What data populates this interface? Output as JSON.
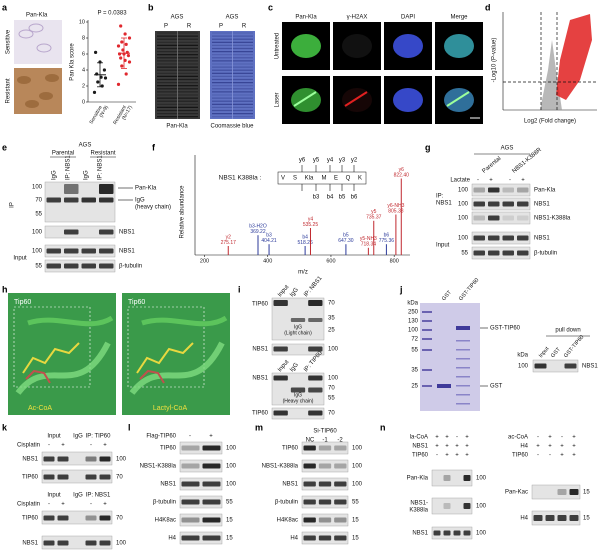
{
  "panel_labels": [
    "a",
    "b",
    "c",
    "d",
    "e",
    "f",
    "g",
    "h",
    "i",
    "j",
    "k",
    "l",
    "m",
    "n"
  ],
  "panels": {
    "a": {
      "texts": [
        "Pan-Kla",
        "Sensitive",
        "Resistant"
      ],
      "plot": {
        "pvalue": "P = 0.0383",
        "ylabel": "Pan Kla score",
        "ylim": [
          0,
          10
        ],
        "yticks": [
          0,
          2,
          4,
          6,
          8,
          10
        ],
        "groups": [
          {
            "name": "Sensitive",
            "n": "(N=9)",
            "color": "#1a1a1a",
            "values": [
              1.2,
              2.0,
              2.5,
              3.0,
              3.1,
              3.5,
              4.0,
              5.0,
              6.2
            ],
            "mean": 3.4,
            "sd": 1.5
          },
          {
            "name": "Resistant",
            "n": "(N=17)",
            "color": "#e0282e",
            "values": [
              2.2,
              3.5,
              4.5,
              5.0,
              5.2,
              5.5,
              5.8,
              6.0,
              6.0,
              6.2,
              6.5,
              7.0,
              7.2,
              7.5,
              8.0,
              8.5,
              9.5
            ],
            "mean": 6.1,
            "sd": 1.9
          }
        ]
      }
    },
    "b": {
      "texts": [
        "AGS",
        "P",
        "R",
        "AGS",
        "P",
        "R",
        "Pan-Kla",
        "Coomassie blue"
      ]
    },
    "c": {
      "texts": [
        "Pan-Kla",
        "γ-H2AX",
        "DAPI",
        "Merge",
        "Untreated",
        "Laser"
      ]
    },
    "d": {
      "texts": [
        "-Log10 (P-value)",
        "Log2 (Fold change)"
      ]
    },
    "e": {
      "texts": [
        "AGS",
        "Parental",
        "Resistant",
        "IgG",
        "IP: NBS1",
        "IgG",
        "IP: NBS1",
        "IP",
        "Input",
        "100",
        "70",
        "55",
        "100",
        "100",
        "55",
        "Pan-Kla",
        "IgG",
        "(heavy chain)",
        "NBS1",
        "NBS1",
        "β-tubulin"
      ]
    },
    "f": {
      "texts": [
        "NBS1 K388la :",
        "V",
        "S",
        "Kla",
        "M",
        "E",
        "Q",
        "K",
        "y6",
        "y5",
        "y4",
        "y3",
        "y2",
        "b3",
        "b4",
        "b5",
        "b6",
        "Relative abundance",
        "m/z"
      ],
      "spectrum": {
        "xlim": [
          170,
          850
        ],
        "xticks": [
          200,
          400,
          600,
          800
        ],
        "ylim": [
          0,
          100
        ],
        "peaks": [
          {
            "name": "y2",
            "mz": 275.17,
            "mz_label": "275.17",
            "intensity": 10,
            "color": "#c0282e"
          },
          {
            "name": "b3-H2O",
            "mz": 369.22,
            "mz_label": "369.22",
            "intensity": 22,
            "color": "#2b3a9a"
          },
          {
            "name": "b3",
            "mz": 404.21,
            "mz_label": "404.21",
            "intensity": 12,
            "color": "#2b3a9a"
          },
          {
            "name": "b4",
            "mz": 518.26,
            "mz_label": "518.26",
            "intensity": 10,
            "color": "#2b3a9a"
          },
          {
            "name": "y4",
            "mz": 535.25,
            "mz_label": "535.25",
            "intensity": 30,
            "color": "#c0282e"
          },
          {
            "name": "b5",
            "mz": 647.3,
            "mz_label": "647.30",
            "intensity": 12,
            "color": "#2b3a9a"
          },
          {
            "name": "y5-NH3",
            "mz": 718.34,
            "mz_label": "718.34",
            "intensity": 8,
            "color": "#c0282e"
          },
          {
            "name": "y5",
            "mz": 735.37,
            "mz_label": "735.37",
            "intensity": 38,
            "color": "#c0282e"
          },
          {
            "name": "b6",
            "mz": 775.36,
            "mz_label": "775.36",
            "intensity": 12,
            "color": "#2b3a9a"
          },
          {
            "name": "y6-NH3",
            "mz": 805.38,
            "mz_label": "805.38",
            "intensity": 45,
            "color": "#c0282e"
          },
          {
            "name": "y6",
            "mz": 822.4,
            "mz_label": "822.40",
            "intensity": 85,
            "color": "#c0282e"
          }
        ]
      }
    },
    "g": {
      "texts": [
        "AGS",
        "Parental",
        "NBS1-K388R",
        "Lactate",
        "-",
        "+",
        "-",
        "+",
        "IP:",
        "NBS1",
        "Input",
        "100",
        "100",
        "100",
        "100",
        "55",
        "Pan-Kla",
        "NBS1",
        "NBS1-K388la",
        "NBS1",
        "β-tubulin"
      ]
    },
    "h": {
      "texts": [
        "Tip60",
        "Tip60",
        "Ac-CoA",
        "Lactyl-CoA"
      ]
    },
    "i": {
      "texts": [
        "Input",
        "IgG",
        "IP: NBS1",
        "TIP60",
        "IgG",
        "(Light chain)",
        "NBS1",
        "70",
        "35",
        "25",
        "100",
        "Input",
        "IgG",
        "IP: TIP60",
        "NBS1",
        "IgG",
        "(Heavy chain)",
        "TIP60",
        "100",
        "70",
        "55",
        "70"
      ]
    },
    "j": {
      "texts": [
        "kDa",
        "250",
        "130",
        "100",
        "72",
        "55",
        "35",
        "25",
        "GST",
        "GST-TIP60",
        "GST-TIP60",
        "GST",
        "pull down",
        "Input",
        "GST",
        "GST-TIP60",
        "kDa",
        "100",
        "NBS1"
      ]
    },
    "k": {
      "texts": [
        "Input",
        "IgG",
        "IP: TIP60",
        "Cisplatin",
        "-",
        "+",
        "-",
        "+",
        "NBS1",
        "TIP60",
        "100",
        "70",
        "Input",
        "IgG",
        "IP: NBS1",
        "Cisplatin",
        "-",
        "+",
        "-",
        "+",
        "TIP60",
        "NBS1",
        "70",
        "100"
      ]
    },
    "l": {
      "texts": [
        "Flag-TIP60",
        "-",
        "+",
        "TIP60",
        "NBS1-K388la",
        "NBS1",
        "β-tubulin",
        "H4K8ac",
        "H4",
        "100",
        "100",
        "100",
        "55",
        "15",
        "15"
      ]
    },
    "m": {
      "texts": [
        "Si-TIP60",
        "NC",
        "-1",
        "-2",
        "TIP60",
        "NBS1-K388la",
        "NBS1",
        "β-tubulin",
        "H4K8ac",
        "H4",
        "100",
        "100",
        "100",
        "55",
        "15",
        "15"
      ]
    },
    "n": {
      "texts": [
        "la-CoA",
        "+",
        "+",
        "-",
        "+",
        "NBS1",
        "+",
        "+",
        "+",
        "+",
        "TIP60",
        "-",
        "+",
        "+",
        "+",
        "Pan-Kla",
        "NBS1-",
        "K388la",
        "NBS1",
        "100",
        "100",
        "100",
        "ac-CoA",
        "-",
        "+",
        "-",
        "+",
        "H4",
        "+",
        "+",
        "+",
        "+",
        "TIP60",
        "-",
        "-",
        "+",
        "+",
        "Pan-Kac",
        "H4",
        "15",
        "15"
      ]
    }
  }
}
